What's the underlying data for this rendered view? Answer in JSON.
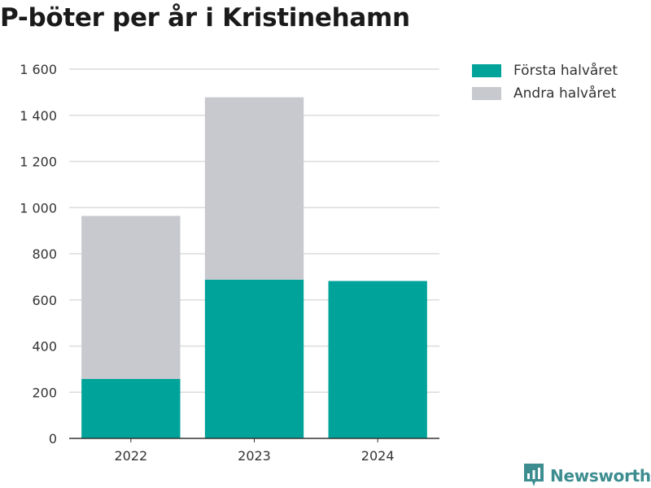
{
  "colors": {
    "first_half": "#00a399",
    "second_half": "#c8c8cf",
    "grid": "#dcdcdc",
    "axis": "#333333",
    "brand": "#3d8d90"
  },
  "brand": {
    "name": "Newsworthy",
    "icon": "bar-chart-speech-bubble-icon"
  },
  "chart_data": {
    "type": "bar",
    "stacked": true,
    "title": "P-böter per år i Kristinehamn",
    "categories": [
      "2022",
      "2023",
      "2024"
    ],
    "series": [
      {
        "name": "Första halvåret",
        "values": [
          258,
          688,
          682
        ]
      },
      {
        "name": "Andra halvåret",
        "values": [
          706,
          790,
          null
        ]
      }
    ],
    "ylim": [
      0,
      1600
    ],
    "yticks": [
      0,
      200,
      400,
      600,
      800,
      1000,
      1200,
      1400,
      1600
    ],
    "ytick_labels": [
      "0",
      "200",
      "400",
      "600",
      "800",
      "1 000",
      "1 200",
      "1 400",
      "1 600"
    ],
    "grid": true,
    "legend_position": "top-right"
  }
}
